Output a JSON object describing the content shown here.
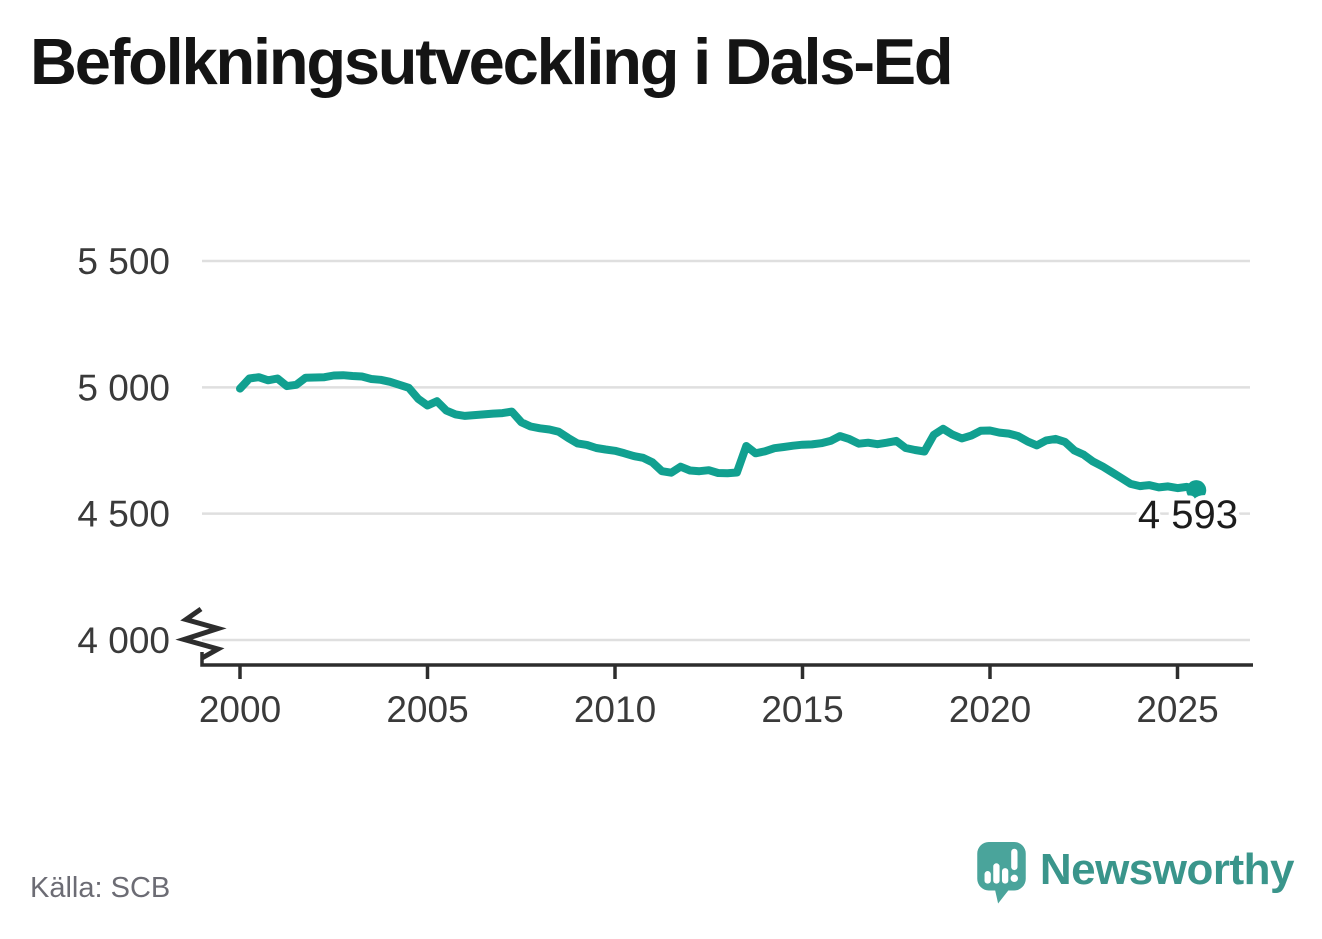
{
  "title": "Befolkningsutveckling i Dals-Ed",
  "source": {
    "text": "Källa: SCB"
  },
  "branding": {
    "name": "Newsworthy"
  },
  "annotation": {
    "last_value_label": "4 593"
  },
  "colors": {
    "line": "#11a090",
    "grid": "#dfdfdf",
    "axis": "#2d2d2d",
    "tick_label": "#3a3a3a",
    "annotation_text": "#1c1c1c",
    "title_text": "#141414",
    "source_text": "#6c6c74",
    "logo_mark": "#4aa49b",
    "logo_glyph": "#ffffff",
    "logo_text": "#3a958b"
  },
  "chart_data": {
    "type": "line",
    "title": "Befolkningsutveckling i Dals-Ed",
    "xlabel": "",
    "ylabel": "",
    "grid": "horizontal",
    "legend": "none",
    "y_axis_break": true,
    "xlim": [
      1999,
      2027
    ],
    "ylim": [
      4000,
      5500
    ],
    "xticks": [
      2000,
      2005,
      2010,
      2015,
      2020,
      2025
    ],
    "yticks": [
      {
        "value": 4000,
        "label": "4 000"
      },
      {
        "value": 4500,
        "label": "4 500"
      },
      {
        "value": 5000,
        "label": "5 000"
      },
      {
        "value": 5500,
        "label": "5 500"
      }
    ],
    "series": [
      {
        "x_start": 2000.0,
        "x_step": 0.25,
        "x_end": 2025.5,
        "values": [
          4995,
          5035,
          5040,
          5028,
          5035,
          5005,
          5010,
          5038,
          5039,
          5040,
          5047,
          5048,
          5045,
          5043,
          5033,
          5030,
          5022,
          5010,
          4998,
          4955,
          4928,
          4945,
          4908,
          4893,
          4887,
          4890,
          4893,
          4896,
          4898,
          4904,
          4862,
          4845,
          4838,
          4833,
          4824,
          4800,
          4778,
          4772,
          4760,
          4754,
          4749,
          4739,
          4728,
          4721,
          4703,
          4668,
          4662,
          4686,
          4671,
          4668,
          4672,
          4661,
          4660,
          4663,
          4768,
          4739,
          4747,
          4759,
          4764,
          4769,
          4773,
          4774,
          4779,
          4788,
          4807,
          4795,
          4777,
          4781,
          4775,
          4781,
          4788,
          4760,
          4752,
          4746,
          4812,
          4836,
          4813,
          4798,
          4809,
          4828,
          4829,
          4821,
          4817,
          4807,
          4786,
          4770,
          4790,
          4796,
          4784,
          4750,
          4733,
          4706,
          4687,
          4664,
          4641,
          4618,
          4609,
          4613,
          4604,
          4608,
          4601,
          4606,
          4593
        ]
      }
    ],
    "last_point": {
      "x": 2025.5,
      "value": 4593,
      "label": "4 593"
    },
    "source": "SCB"
  }
}
